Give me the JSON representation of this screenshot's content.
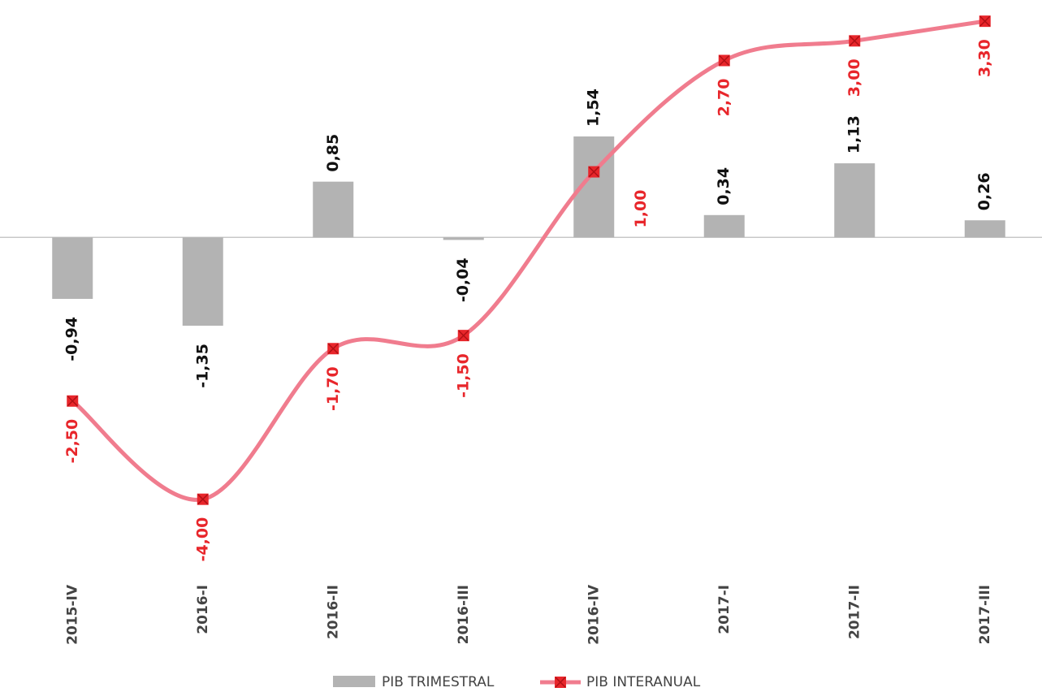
{
  "chart_data": {
    "type": "bar-line",
    "categories": [
      "2015-IV",
      "2016-I",
      "2016-II",
      "2016-III",
      "2016-IV",
      "2017-I",
      "2017-II",
      "2017-III"
    ],
    "series": [
      {
        "name": "PIB TRIMESTRAL",
        "type": "bar",
        "color": "#b3b3b3",
        "values": [
          -0.94,
          -1.35,
          0.85,
          -0.04,
          1.54,
          0.34,
          1.13,
          0.26
        ],
        "value_labels": [
          "-0,94",
          "-1,35",
          "0,85",
          "-0,04",
          "1,54",
          "0,34",
          "1,13",
          "0,26"
        ]
      },
      {
        "name": "PIB INTERANUAL",
        "type": "line",
        "color": "#f07c8e",
        "marker_color": "#e8262b",
        "values": [
          -2.5,
          -4.0,
          -1.7,
          -1.5,
          1.0,
          2.7,
          3.0,
          3.3
        ],
        "value_labels": [
          "-2,50",
          "-4,00",
          "-1,70",
          "-1,50",
          "1,00",
          "2,70",
          "3,00",
          "3,30"
        ]
      }
    ],
    "ylim": [
      -4.5,
      3.5
    ],
    "legend": "bottom"
  }
}
